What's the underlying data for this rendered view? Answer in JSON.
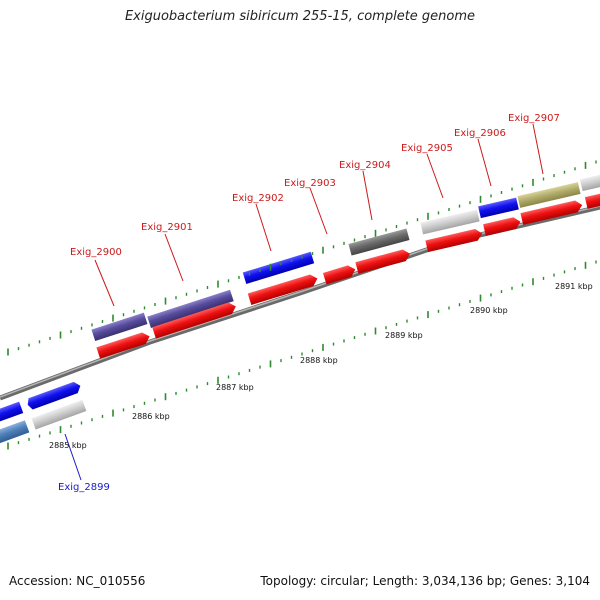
{
  "header": {
    "title": "Exiguobacterium sibiricum 255-15, complete genome"
  },
  "footer": {
    "accession": "Accession: NC_010556",
    "summary": "Topology: circular; Length: 3,034,136 bp; Genes: 3,104"
  },
  "scale_labels": [
    "2885 kbp",
    "2886 kbp",
    "2887 kbp",
    "2888 kbp",
    "2889 kbp",
    "2890 kbp",
    "2891 kbp"
  ],
  "genes": [
    {
      "label": "Exig_2899",
      "strand": "minus"
    },
    {
      "label": "Exig_2900",
      "strand": "plus"
    },
    {
      "label": "Exig_2901",
      "strand": "plus"
    },
    {
      "label": "Exig_2902",
      "strand": "plus"
    },
    {
      "label": "Exig_2903",
      "strand": "plus"
    },
    {
      "label": "Exig_2904",
      "strand": "plus"
    },
    {
      "label": "Exig_2905",
      "strand": "plus"
    },
    {
      "label": "Exig_2906",
      "strand": "plus"
    },
    {
      "label": "Exig_2907",
      "strand": "plus"
    }
  ],
  "colors": {
    "label_plus": "#cc1a1a",
    "label_minus": "#1a1acc",
    "cds": "#ee1111",
    "backbone": "#8c8c8c",
    "tick": "#2e8b2e"
  }
}
